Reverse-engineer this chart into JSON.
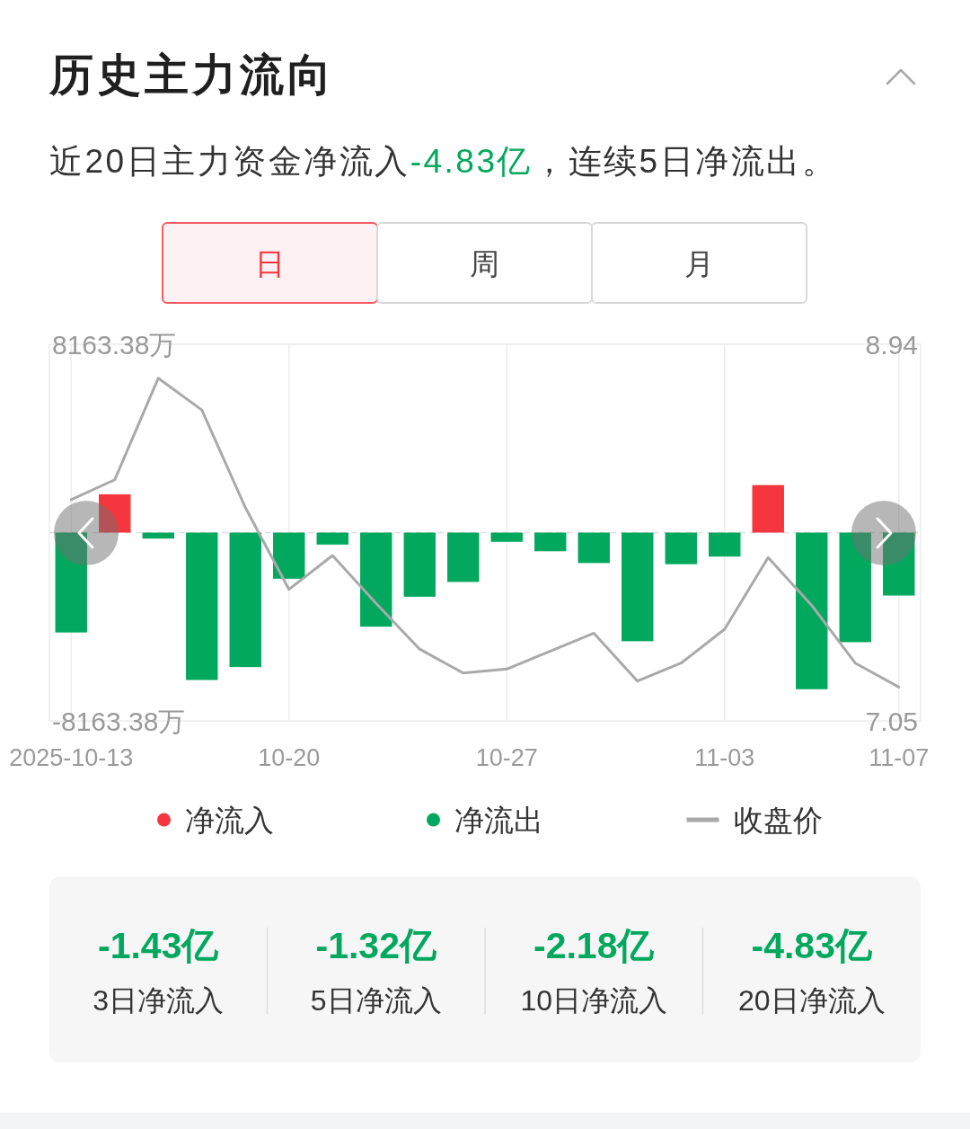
{
  "chart_data": {
    "type": "bar",
    "title": "历史主力流向",
    "subtitle": "近20日主力资金净流入-4.83亿，连续5日净流出。",
    "categories": [
      "2025-10-13",
      null,
      null,
      null,
      null,
      "10-20",
      null,
      null,
      null,
      null,
      "10-27",
      null,
      null,
      null,
      null,
      "11-03",
      null,
      null,
      null,
      "11-07"
    ],
    "series": [
      {
        "values": [
          -4330,
          1660,
          -260,
          -6390,
          -5830,
          -2000,
          -520,
          -4080,
          -2780,
          -2140,
          -400,
          -810,
          -1320,
          -4710,
          -1370,
          -1040,
          2060,
          -6790,
          -4750,
          -2730
        ],
        "colors": [
          "#02a85e",
          "#f5363f",
          "#02a85e",
          "#02a85e",
          "#02a85e",
          "#02a85e",
          "#02a85e",
          "#02a85e",
          "#02a85e",
          "#02a85e",
          "#02a85e",
          "#02a85e",
          "#02a85e",
          "#02a85e",
          "#02a85e",
          "#02a85e",
          "#f5363f",
          "#02a85e",
          "#02a85e",
          "#02a85e"
        ]
      },
      {
        "name": "收盘价",
        "type": "line",
        "axis": "y2",
        "color": "#a9a9a9",
        "values": [
          8.16,
          8.26,
          8.77,
          8.61,
          8.12,
          7.71,
          7.88,
          7.64,
          7.41,
          7.29,
          7.31,
          7.4,
          7.49,
          7.25,
          7.34,
          7.51,
          7.87,
          7.63,
          7.34,
          7.22
        ]
      }
    ],
    "ylim": [
      -8163.38,
      8163.38
    ],
    "yticks": [
      {
        "value": 8163.38,
        "label": "8163.38万"
      },
      {
        "value": -8163.38,
        "label": "-8163.38万"
      }
    ],
    "y2lim": [
      7.05,
      8.94
    ],
    "y2ticks": [
      8.94,
      7.05
    ],
    "grid": "x",
    "legend": "bottom",
    "ref_lines": [
      {
        "axis": "y",
        "value": 0,
        "line_style": "dashed",
        "color": "#dedede"
      }
    ],
    "annotations": [
      "日",
      "周",
      "月",
      "-1.43亿",
      "3日净流入",
      "-1.32亿",
      "5日净流入",
      "-2.18亿",
      "10日净流入",
      "-4.83亿",
      "20日净流入",
      "净流入",
      "净流出"
    ]
  }
}
